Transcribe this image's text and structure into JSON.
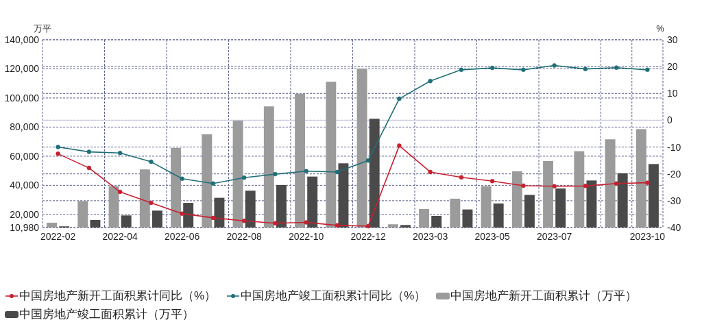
{
  "chart_data": {
    "type": "bar",
    "categories": [
      "2022-02",
      null,
      "2022-04",
      null,
      "2022-06",
      null,
      "2022-08",
      null,
      "2022-10",
      null,
      "2022-12",
      null,
      "2023-03",
      null,
      "2023-05",
      null,
      "2023-07",
      null,
      null,
      "2023-10"
    ],
    "series": [
      {
        "name": "中国房地产新开工面积累计同比（%）",
        "type": "line",
        "axis": "y2",
        "color": "#c8202f",
        "values": [
          -12.5,
          -17.8,
          -26.7,
          -30.8,
          -34.8,
          -36.4,
          -37.5,
          -38.4,
          -38.1,
          -39.2,
          -39.5,
          -9.5,
          -19.3,
          -21.3,
          -22.7,
          -24.4,
          -24.6,
          -24.5,
          -23.6,
          -23.3
        ]
      },
      {
        "name": "中国房地产竣工面积累计同比（%）",
        "type": "line",
        "axis": "y2",
        "color": "#1f6f78",
        "values": [
          -10.0,
          -11.8,
          -12.2,
          -15.5,
          -21.8,
          -23.6,
          -21.4,
          -20.1,
          -19.0,
          -19.3,
          -15.0,
          8.0,
          14.6,
          18.8,
          19.5,
          18.8,
          20.4,
          19.1,
          19.6,
          18.8
        ]
      },
      {
        "name": "中国房地产新开工面积累计（万平）",
        "color": "#9b9b9b",
        "values": [
          14300,
          29200,
          39400,
          50900,
          65700,
          75000,
          84400,
          94200,
          102900,
          111100,
          120200,
          13200,
          23700,
          30800,
          39400,
          49600,
          56700,
          63400,
          71600,
          78600
        ]
      },
      {
        "name": "中国房地产竣工面积累计（万平）",
        "color": "#4a4a4a",
        "values": [
          11800,
          16200,
          19300,
          22600,
          27900,
          31400,
          36300,
          40200,
          46000,
          55100,
          85700,
          12700,
          19000,
          23400,
          27500,
          33400,
          37800,
          43300,
          48300,
          54600
        ]
      }
    ],
    "ylabel": "万平",
    "y2label": "%",
    "ylim": [
      10980,
      140000
    ],
    "yticks": [
      {
        "value": 10980,
        "label": "10,980"
      },
      {
        "value": 20000,
        "label": "20,000"
      },
      {
        "value": 40000,
        "label": "40,000"
      },
      {
        "value": 60000,
        "label": "60,000"
      },
      {
        "value": 80000,
        "label": "80,000"
      },
      {
        "value": 100000,
        "label": "100,000"
      },
      {
        "value": 120000,
        "label": "120,000"
      },
      {
        "value": 140000,
        "label": "140,000"
      }
    ],
    "y2lim": [
      -40,
      30
    ],
    "y2ticks": [
      -40,
      -30,
      -20,
      -10,
      0,
      10,
      20,
      30
    ],
    "ref_lines": [
      {
        "axis": "y2",
        "value": 0,
        "color": "#c8c8e0"
      }
    ],
    "grid": true,
    "legend": "bottom",
    "marker": "circle"
  }
}
